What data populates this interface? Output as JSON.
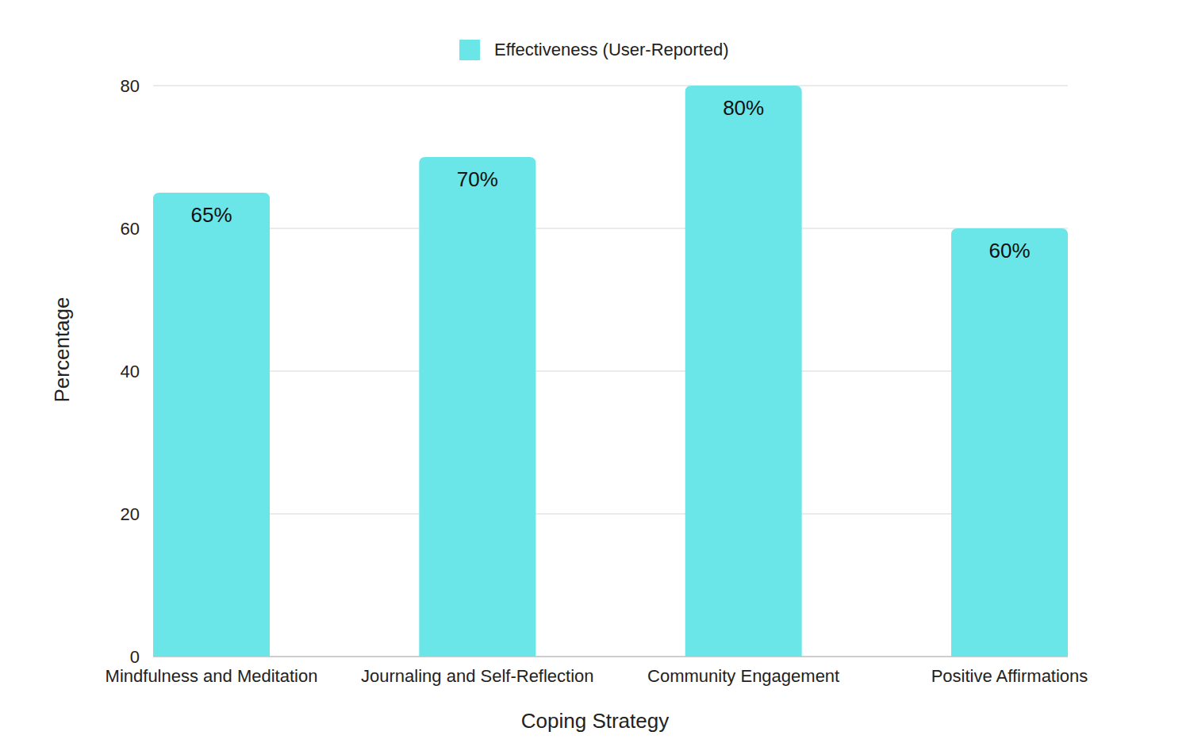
{
  "chart_data": {
    "type": "bar",
    "x_label": "Coping Strategy",
    "y_label": "Percentage",
    "categories": [
      "Mindfulness and Meditation",
      "Journaling and Self-Reflection",
      "Community Engagement",
      "Positive Affirmations"
    ],
    "series": [
      {
        "name": "Effectiveness (User-Reported)",
        "color": "#6ae6e8",
        "values": [
          65,
          70,
          80,
          60
        ],
        "value_labels": [
          "65%",
          "70%",
          "80%",
          "60%"
        ]
      }
    ],
    "ylim": [
      0,
      80
    ],
    "yticks": [
      0,
      20,
      40,
      60,
      80
    ],
    "grid": true,
    "legend": "top",
    "data_labels": true
  }
}
